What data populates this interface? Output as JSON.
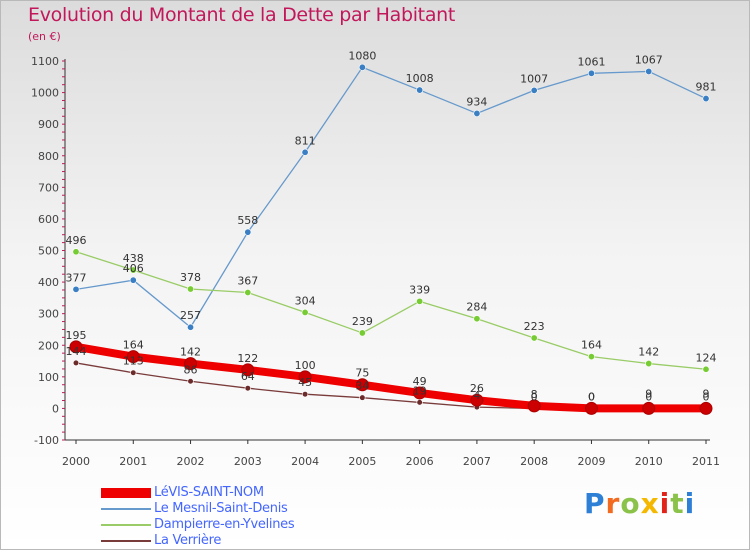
{
  "title": "Evolution du Montant de la Dette par Habitant",
  "subtitle": "(en €)",
  "brand": "Proxiti",
  "brand_colors": [
    "#2e7fd6",
    "#f26b21",
    "#8bc34a",
    "#f5b800",
    "#e2231a",
    "#8bc34a",
    "#2e7fd6"
  ],
  "chart_data": {
    "type": "line",
    "x": [
      "2000",
      "2001",
      "2002",
      "2003",
      "2004",
      "2005",
      "2006",
      "2007",
      "2008",
      "2009",
      "2010",
      "2011"
    ],
    "ylim": [
      -100,
      1100
    ],
    "yticks": [
      -100,
      0,
      100,
      200,
      300,
      400,
      500,
      600,
      700,
      800,
      900,
      1000,
      1100
    ],
    "grid": false,
    "legend_position": "bottom-left",
    "series": [
      {
        "name": "LéVIS-SAINT-NOM",
        "color": "#ee0000",
        "values": [
          195,
          164,
          142,
          122,
          100,
          75,
          49,
          26,
          8,
          0,
          0,
          0
        ],
        "labels": [
          "195",
          "164",
          "142",
          "122",
          "100",
          "75",
          "49",
          "26",
          "8",
          "0",
          "0",
          "0"
        ]
      },
      {
        "name": "Le Mesnil-Saint-Denis",
        "color": "#6699cc",
        "values": [
          377,
          406,
          257,
          558,
          811,
          1080,
          1008,
          934,
          1007,
          1061,
          1067,
          981
        ],
        "labels": [
          "377",
          "406",
          "257",
          "558",
          "811",
          "1080",
          "1008",
          "934",
          "1007",
          "1061",
          "1067",
          "981"
        ]
      },
      {
        "name": "Dampierre-en-Yvelines",
        "color": "#99cc66",
        "values": [
          496,
          438,
          378,
          367,
          304,
          239,
          339,
          284,
          223,
          164,
          142,
          124
        ],
        "labels": [
          "496",
          "438",
          "378",
          "367",
          "304",
          "239",
          "339",
          "284",
          "223",
          "164",
          "142",
          "124"
        ]
      },
      {
        "name": "La Verrière",
        "color": "#7a3b3b",
        "values": [
          144,
          113,
          86,
          64,
          45,
          34,
          19,
          4,
          0,
          0,
          9,
          9
        ],
        "labels": [
          "144",
          "113",
          "86",
          "64",
          "45",
          "34",
          "19",
          "4",
          "0",
          "0",
          "9",
          "9"
        ]
      }
    ]
  }
}
